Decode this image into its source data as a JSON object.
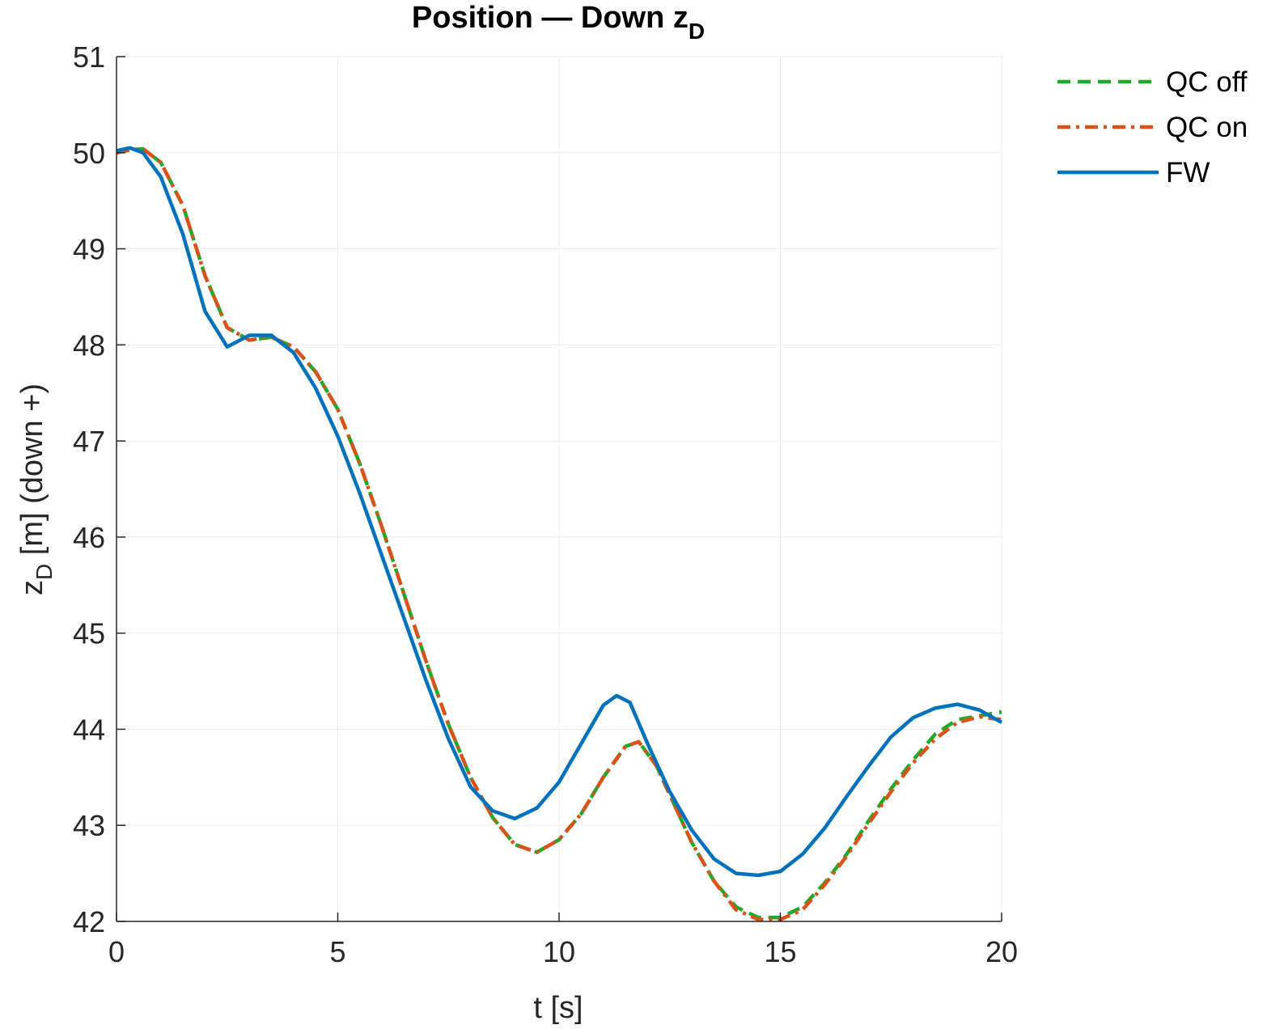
{
  "chart_data": {
    "type": "line",
    "title": {
      "main": "Position — Down z",
      "sub": "D"
    },
    "xlabel": "t [s]",
    "ylabel": {
      "main": "z",
      "sub": "D",
      "rest": " [m] (down +)"
    },
    "xlim": [
      0,
      20
    ],
    "ylim": [
      42,
      51
    ],
    "xticks": [
      0,
      5,
      10,
      15,
      20
    ],
    "yticks": [
      42,
      43,
      44,
      45,
      46,
      47,
      48,
      49,
      50,
      51
    ],
    "grid": true,
    "legend_position": "outside top-right",
    "series": [
      {
        "name": "QC off",
        "color": "#1fab2a",
        "style": "dashed",
        "x": [
          0,
          0.3,
          0.6,
          1.0,
          1.5,
          2.0,
          2.5,
          3.0,
          3.5,
          4.0,
          4.5,
          5.0,
          5.5,
          6.0,
          6.5,
          7.0,
          7.5,
          8.0,
          8.5,
          9.0,
          9.5,
          10.0,
          10.5,
          11.0,
          11.5,
          11.8,
          12.2,
          12.6,
          13.0,
          13.5,
          14.0,
          14.5,
          15.0,
          15.5,
          16.0,
          16.5,
          17.0,
          17.5,
          18.0,
          18.5,
          19.0,
          19.5,
          20.0
        ],
        "y": [
          50.0,
          50.03,
          50.04,
          49.9,
          49.45,
          48.72,
          48.18,
          48.05,
          48.08,
          47.98,
          47.72,
          47.33,
          46.76,
          46.1,
          45.4,
          44.7,
          44.05,
          43.5,
          43.08,
          42.8,
          42.72,
          42.85,
          43.12,
          43.5,
          43.82,
          43.87,
          43.62,
          43.22,
          42.82,
          42.42,
          42.15,
          42.04,
          42.04,
          42.15,
          42.4,
          42.7,
          43.05,
          43.38,
          43.68,
          43.95,
          44.1,
          44.14,
          44.18
        ]
      },
      {
        "name": "QC on",
        "color": "#d95319",
        "style": "dashdot",
        "x": [
          0,
          0.3,
          0.6,
          1.0,
          1.5,
          2.0,
          2.5,
          3.0,
          3.5,
          4.0,
          4.5,
          5.0,
          5.5,
          6.0,
          6.5,
          7.0,
          7.5,
          8.0,
          8.5,
          9.0,
          9.5,
          10.0,
          10.5,
          11.0,
          11.5,
          11.8,
          12.2,
          12.6,
          13.0,
          13.5,
          14.0,
          14.5,
          15.0,
          15.5,
          16.0,
          16.5,
          17.0,
          17.5,
          18.0,
          18.5,
          19.0,
          19.5,
          20.0
        ],
        "y": [
          50.0,
          50.03,
          50.04,
          49.9,
          49.45,
          48.72,
          48.18,
          48.05,
          48.08,
          47.98,
          47.72,
          47.33,
          46.76,
          46.1,
          45.4,
          44.7,
          44.05,
          43.5,
          43.08,
          42.8,
          42.72,
          42.85,
          43.12,
          43.5,
          43.82,
          43.87,
          43.62,
          43.22,
          42.82,
          42.42,
          42.12,
          42.02,
          42.02,
          42.12,
          42.38,
          42.68,
          43.02,
          43.35,
          43.65,
          43.9,
          44.07,
          44.13,
          44.1
        ]
      },
      {
        "name": "FW",
        "color": "#0072bd",
        "style": "solid",
        "x": [
          0,
          0.3,
          0.6,
          1.0,
          1.5,
          2.0,
          2.5,
          3.0,
          3.5,
          4.0,
          4.5,
          5.0,
          5.5,
          6.0,
          6.5,
          7.0,
          7.5,
          8.0,
          8.5,
          9.0,
          9.5,
          10.0,
          10.5,
          11.0,
          11.3,
          11.6,
          12.0,
          12.5,
          13.0,
          13.5,
          14.0,
          14.5,
          15.0,
          15.5,
          16.0,
          16.5,
          17.0,
          17.5,
          18.0,
          18.5,
          19.0,
          19.5,
          20.0
        ],
        "y": [
          50.02,
          50.05,
          50.0,
          49.75,
          49.15,
          48.35,
          47.98,
          48.1,
          48.1,
          47.92,
          47.55,
          47.05,
          46.45,
          45.8,
          45.15,
          44.5,
          43.9,
          43.4,
          43.15,
          43.07,
          43.18,
          43.45,
          43.85,
          44.25,
          44.35,
          44.28,
          43.85,
          43.35,
          42.95,
          42.65,
          42.5,
          42.48,
          42.52,
          42.7,
          42.97,
          43.3,
          43.62,
          43.92,
          44.12,
          44.22,
          44.26,
          44.2,
          44.07
        ]
      }
    ]
  }
}
